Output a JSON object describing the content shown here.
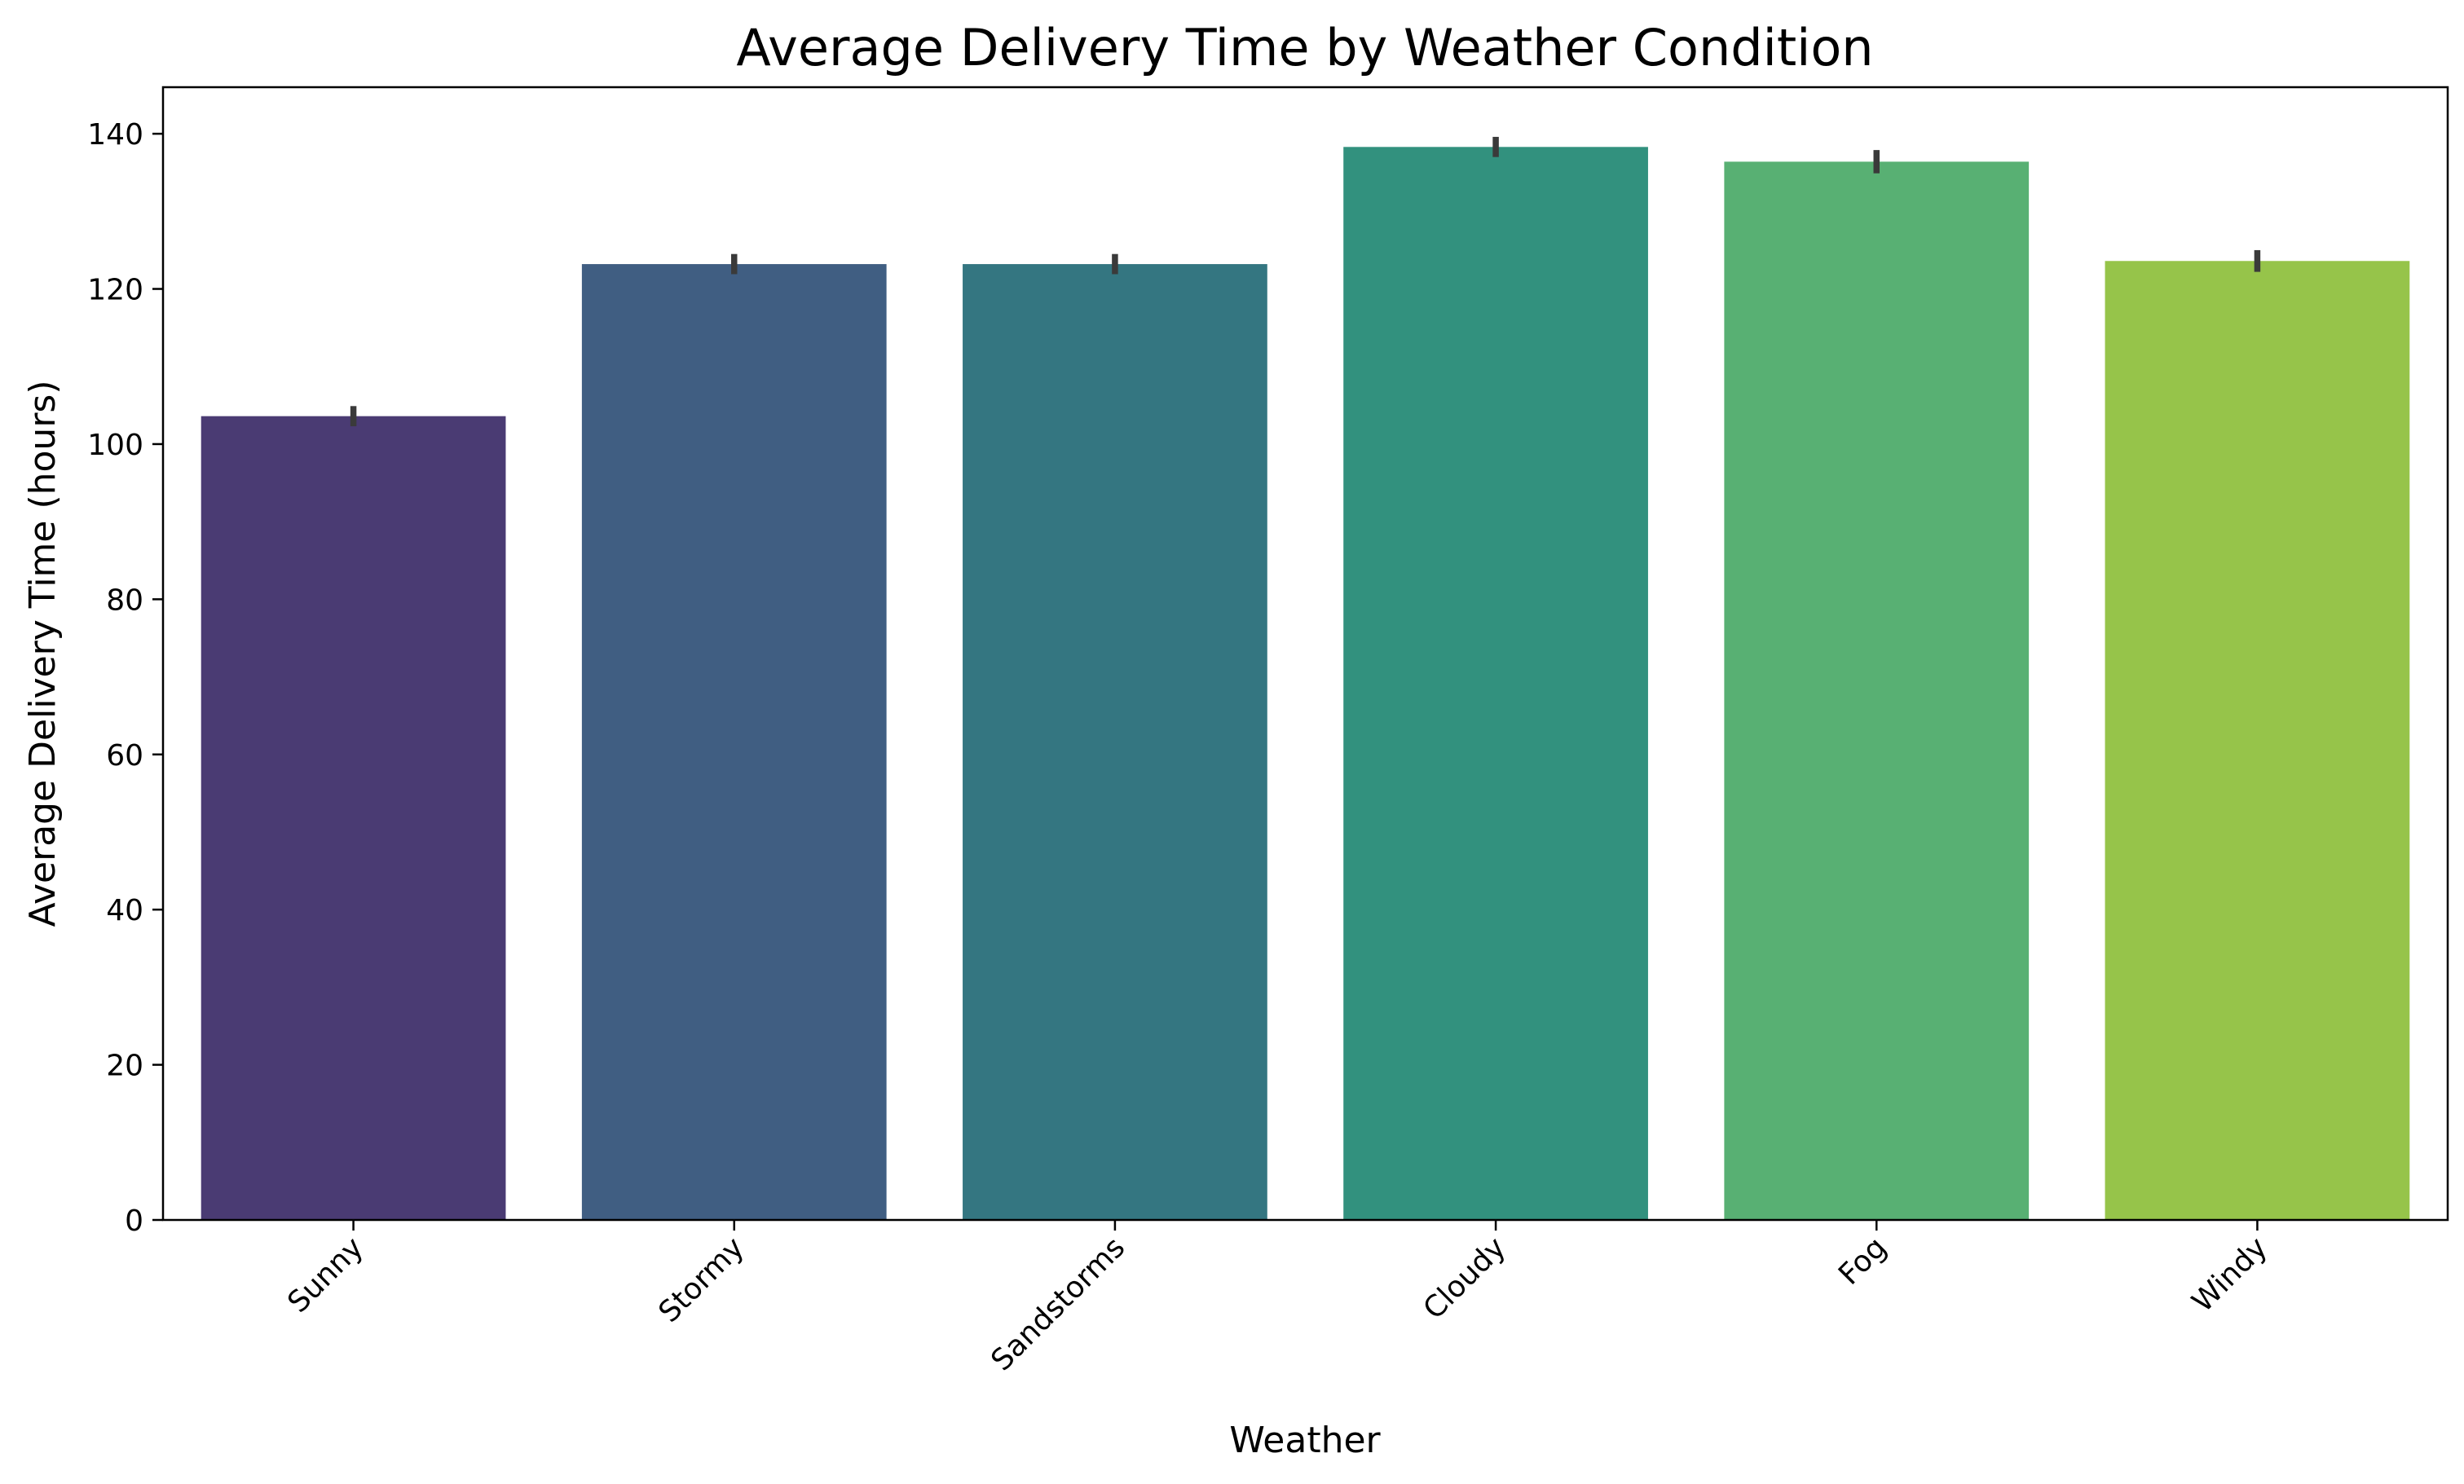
{
  "chart_data": {
    "type": "bar",
    "title": "Average Delivery Time by Weather Condition",
    "xlabel": "Weather",
    "ylabel": "Average Delivery Time (hours)",
    "categories": [
      "Sunny",
      "Stormy",
      "Sandstorms",
      "Cloudy",
      "Fog",
      "Windy"
    ],
    "values": [
      103.6,
      123.2,
      123.2,
      138.3,
      136.4,
      123.6
    ],
    "error_bars": [
      [
        102.3,
        104.9
      ],
      [
        121.9,
        124.5
      ],
      [
        121.9,
        124.5
      ],
      [
        137.0,
        139.6
      ],
      [
        134.9,
        137.9
      ],
      [
        122.2,
        125.0
      ]
    ],
    "colors": [
      "#4a3b73",
      "#405e82",
      "#347681",
      "#32917e",
      "#58b073",
      "#96c44a"
    ],
    "error_color": "#3a3a3a",
    "ylim": [
      0,
      146
    ],
    "yticks": [
      0,
      20,
      40,
      60,
      80,
      100,
      120,
      140
    ],
    "grid": false,
    "legend": "none"
  }
}
